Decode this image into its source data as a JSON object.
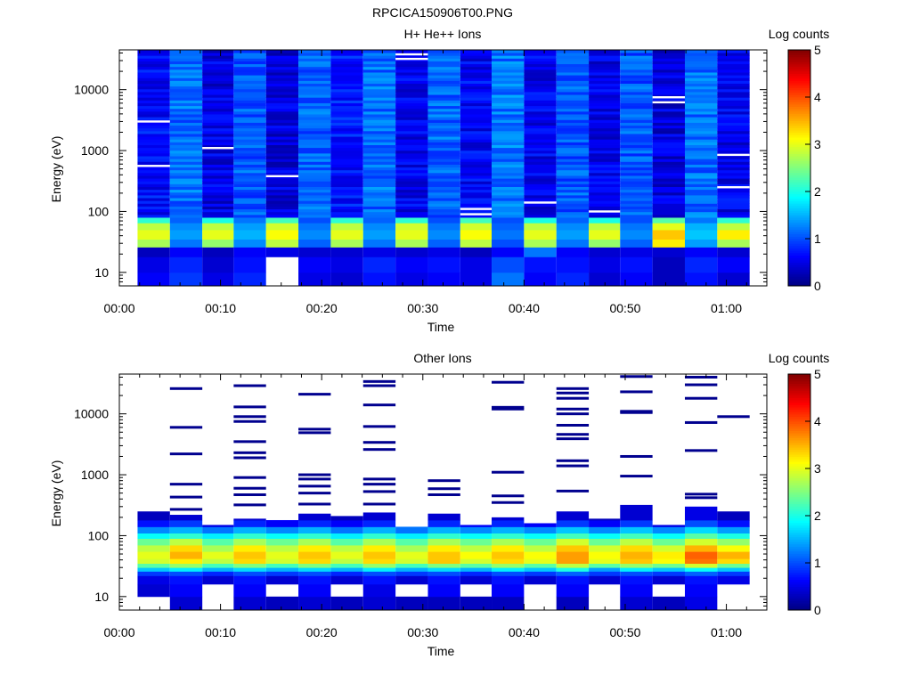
{
  "figure_title": "RPCICA150906T00.PNG",
  "chart_data": [
    {
      "type": "heatmap",
      "title": "H+ He++ Ions",
      "xlabel": "Time",
      "ylabel": "Energy (eV)",
      "x_ticks": [
        "00:00",
        "00:10",
        "00:20",
        "00:30",
        "00:40",
        "00:50",
        "01:00"
      ],
      "y_ticks": [
        "10",
        "100",
        "1000",
        "10000"
      ],
      "y_scale": "log",
      "ylim": [
        6,
        45000
      ],
      "colorbar": {
        "label": "Log counts",
        "ticks": [
          "0",
          "1",
          "2",
          "3",
          "4",
          "5"
        ],
        "range": [
          0,
          5
        ],
        "colormap": "jet"
      },
      "column_starts_min": [
        1.8,
        5.0,
        8.2,
        11.3,
        14.5,
        17.7,
        20.9,
        24.1,
        27.3,
        30.5,
        33.7,
        36.8,
        40.0,
        43.2,
        46.4,
        49.5,
        52.7,
        55.9,
        59.1,
        62.3
      ],
      "bands": [
        {
          "emin": 6,
          "emax": 10,
          "levels": [
            0.6,
            0.9,
            0.5,
            0.8,
            null,
            0.5,
            0.4,
            0.7,
            0.5,
            0.6,
            0.5,
            1.2,
            0.6,
            0.8,
            0.4,
            0.6,
            0.3,
            0.7,
            0.4
          ]
        },
        {
          "emin": 10,
          "emax": 18,
          "levels": [
            0.5,
            0.8,
            0.4,
            0.7,
            null,
            0.6,
            0.5,
            0.8,
            0.6,
            0.7,
            0.5,
            1.0,
            0.7,
            0.7,
            0.5,
            0.7,
            0.3,
            0.8,
            0.6
          ]
        },
        {
          "emin": 18,
          "emax": 26,
          "levels": [
            0.3,
            0.6,
            0.3,
            0.6,
            0.5,
            0.4,
            0.4,
            0.5,
            0.4,
            0.5,
            0.3,
            0.6,
            1.2,
            0.6,
            0.4,
            0.5,
            0.4,
            0.6,
            0.4
          ]
        },
        {
          "emin": 26,
          "emax": 35,
          "levels": [
            2.7,
            1.2,
            2.6,
            1.3,
            2.8,
            1.1,
            2.7,
            1.2,
            2.7,
            1.1,
            2.8,
            1.0,
            2.7,
            1.2,
            2.6,
            1.1,
            3.2,
            1.4,
            2.7
          ]
        },
        {
          "emin": 35,
          "emax": 50,
          "levels": [
            3.0,
            1.4,
            3.0,
            1.5,
            3.1,
            1.3,
            3.0,
            1.4,
            3.0,
            1.3,
            3.1,
            1.2,
            3.0,
            1.4,
            3.0,
            1.3,
            3.4,
            1.6,
            3.2
          ]
        },
        {
          "emin": 50,
          "emax": 65,
          "levels": [
            2.8,
            1.3,
            2.8,
            1.4,
            2.9,
            1.2,
            2.8,
            1.3,
            2.9,
            1.2,
            2.9,
            1.1,
            2.8,
            1.3,
            2.8,
            1.2,
            3.0,
            1.5,
            2.8
          ]
        },
        {
          "emin": 65,
          "emax": 80,
          "levels": [
            2.1,
            1.1,
            2.0,
            1.2,
            2.2,
            1.0,
            2.1,
            1.1,
            2.1,
            1.0,
            2.2,
            1.0,
            2.0,
            1.1,
            2.0,
            1.0,
            2.3,
            1.2,
            2.1
          ]
        },
        {
          "emin": 80,
          "emax": 45000,
          "levels": [
            0.65,
            1.15,
            0.5,
            1.05,
            0.45,
            1.1,
            0.7,
            1.15,
            0.55,
            1.1,
            0.6,
            1.2,
            0.55,
            1.05,
            0.5,
            1.05,
            0.45,
            1.15,
            0.55
          ]
        }
      ],
      "gaps": [
        {
          "col": 0,
          "e": 3000
        },
        {
          "col": 0,
          "e": 560
        },
        {
          "col": 2,
          "e": 1100
        },
        {
          "col": 4,
          "e": 380
        },
        {
          "col": 8,
          "e": 38000
        },
        {
          "col": 8,
          "e": 32000
        },
        {
          "col": 10,
          "e": 110
        },
        {
          "col": 10,
          "e": 90
        },
        {
          "col": 12,
          "e": 140
        },
        {
          "col": 14,
          "e": 100
        },
        {
          "col": 16,
          "e": 7500
        },
        {
          "col": 16,
          "e": 6200
        },
        {
          "col": 18,
          "e": 850
        },
        {
          "col": 18,
          "e": 250
        }
      ]
    },
    {
      "type": "heatmap",
      "title": "Other Ions",
      "xlabel": "Time",
      "ylabel": "Energy (eV)",
      "x_ticks": [
        "00:00",
        "00:10",
        "00:20",
        "00:30",
        "00:40",
        "00:50",
        "01:00"
      ],
      "y_ticks": [
        "10",
        "100",
        "1000",
        "10000"
      ],
      "y_scale": "log",
      "ylim": [
        6,
        45000
      ],
      "colorbar": {
        "label": "Log counts",
        "ticks": [
          "0",
          "1",
          "2",
          "3",
          "4",
          "5"
        ],
        "range": [
          0,
          5
        ],
        "colormap": "jet"
      },
      "column_starts_min": [
        1.8,
        5.0,
        8.2,
        11.3,
        14.5,
        17.7,
        20.9,
        24.1,
        27.3,
        30.5,
        33.7,
        36.8,
        40.0,
        43.2,
        46.4,
        49.5,
        52.7,
        55.9,
        59.1,
        62.3
      ],
      "column_tops_ev": [
        250,
        220,
        150,
        190,
        180,
        230,
        210,
        240,
        140,
        230,
        150,
        200,
        160,
        250,
        190,
        320,
        150,
        300,
        250
      ],
      "bands": [
        {
          "emin": 6,
          "emax": 10,
          "levels": [
            null,
            0.4,
            null,
            0.4,
            0.3,
            0.4,
            0.3,
            0.4,
            0.3,
            0.3,
            0.3,
            0.3,
            null,
            0.3,
            null,
            0.4,
            0.3,
            0.5,
            null
          ]
        },
        {
          "emin": 10,
          "emax": 16,
          "levels": [
            0.4,
            0.6,
            null,
            0.6,
            null,
            0.6,
            null,
            0.5,
            null,
            0.6,
            null,
            0.6,
            null,
            0.6,
            null,
            0.6,
            null,
            0.6,
            null
          ]
        },
        {
          "emin": 16,
          "emax": 22,
          "levels": [
            0.5,
            0.7,
            0.4,
            0.7,
            0.4,
            0.7,
            0.4,
            0.7,
            0.4,
            0.7,
            0.4,
            0.7,
            0.4,
            0.7,
            0.4,
            0.7,
            0.4,
            0.7,
            0.5
          ]
        },
        {
          "emin": 22,
          "emax": 26,
          "levels": [
            0.9,
            1.0,
            0.8,
            1.0,
            0.9,
            1.0,
            0.8,
            1.0,
            0.9,
            1.0,
            0.8,
            1.0,
            0.9,
            1.1,
            0.9,
            1.0,
            0.9,
            1.1,
            0.9
          ]
        },
        {
          "emin": 26,
          "emax": 30,
          "levels": [
            1.6,
            1.8,
            1.5,
            1.7,
            1.5,
            1.7,
            1.5,
            1.8,
            1.5,
            1.7,
            1.5,
            1.8,
            1.6,
            2.0,
            1.4,
            1.8,
            1.6,
            1.9,
            1.6
          ]
        },
        {
          "emin": 30,
          "emax": 35,
          "levels": [
            2.3,
            2.6,
            2.2,
            2.5,
            2.2,
            2.5,
            2.2,
            2.6,
            2.2,
            2.5,
            2.3,
            2.6,
            2.3,
            2.8,
            2.3,
            2.6,
            2.4,
            2.9,
            2.4
          ]
        },
        {
          "emin": 35,
          "emax": 42,
          "levels": [
            2.9,
            3.2,
            2.8,
            3.3,
            2.9,
            3.3,
            2.8,
            3.3,
            2.9,
            3.4,
            2.9,
            3.3,
            3.0,
            3.6,
            3.0,
            3.4,
            3.1,
            3.8,
            3.3
          ]
        },
        {
          "emin": 42,
          "emax": 55,
          "levels": [
            3.0,
            3.5,
            3.0,
            3.4,
            3.0,
            3.4,
            3.0,
            3.4,
            3.0,
            3.4,
            3.1,
            3.4,
            3.1,
            3.6,
            3.1,
            3.5,
            3.2,
            3.9,
            3.5
          ]
        },
        {
          "emin": 55,
          "emax": 70,
          "levels": [
            2.8,
            3.3,
            2.7,
            3.2,
            2.8,
            3.2,
            2.8,
            3.2,
            2.7,
            3.2,
            2.8,
            3.2,
            2.8,
            3.4,
            2.9,
            3.3,
            2.9,
            3.5,
            3.1
          ]
        },
        {
          "emin": 70,
          "emax": 90,
          "levels": [
            2.4,
            2.8,
            2.3,
            2.7,
            2.4,
            2.7,
            2.3,
            2.7,
            2.3,
            2.7,
            2.4,
            2.7,
            2.4,
            2.9,
            2.4,
            2.8,
            2.4,
            2.9,
            2.6
          ]
        },
        {
          "emin": 90,
          "emax": 110,
          "levels": [
            1.9,
            2.1,
            1.8,
            2.1,
            1.9,
            2.1,
            1.8,
            2.1,
            1.8,
            2.1,
            1.9,
            2.1,
            1.9,
            2.2,
            1.9,
            2.2,
            1.9,
            2.3,
            2.0
          ]
        },
        {
          "emin": 110,
          "emax": 140,
          "levels": [
            1.3,
            1.5,
            1.2,
            1.5,
            1.3,
            1.5,
            1.2,
            1.5,
            1.2,
            1.5,
            1.3,
            1.5,
            1.3,
            1.6,
            1.3,
            1.6,
            1.3,
            1.7,
            1.4
          ]
        },
        {
          "emin": 140,
          "emax": 180,
          "levels": [
            0.7,
            0.9,
            0.5,
            0.8,
            0.6,
            0.8,
            0.6,
            0.8,
            0.5,
            0.8,
            0.6,
            0.8,
            0.6,
            0.9,
            0.6,
            0.9,
            0.5,
            1.0,
            0.7
          ]
        },
        {
          "emin": 180,
          "emax": 330,
          "levels": [
            0.3,
            0.4,
            0.3,
            0.4,
            0.3,
            0.4,
            0.3,
            0.4,
            0.3,
            0.4,
            0.3,
            0.4,
            0.3,
            0.4,
            0.3,
            0.4,
            0.3,
            0.5,
            0.3
          ]
        }
      ],
      "sparse_lines": [
        {
          "col": 1,
          "e": [
            26000,
            6000,
            2200,
            700,
            430,
            270
          ]
        },
        {
          "col": 3,
          "e": [
            29000,
            13000,
            9000,
            7500,
            3500,
            2300,
            1900,
            900,
            600,
            470,
            320
          ]
        },
        {
          "col": 5,
          "e": [
            21000,
            5600,
            4900,
            1000,
            850,
            650,
            500,
            330
          ]
        },
        {
          "col": 7,
          "e": [
            34000,
            29000,
            14000,
            6200,
            3400,
            2600,
            850,
            700,
            530,
            330
          ]
        },
        {
          "col": 9,
          "e": [
            800,
            590,
            470
          ]
        },
        {
          "col": 11,
          "e": [
            33000,
            12800,
            12000,
            1100,
            450,
            350
          ]
        },
        {
          "col": 13,
          "e": [
            26000,
            22000,
            18000,
            12000,
            10000,
            6500,
            4600,
            3900,
            1700,
            1400,
            540
          ]
        },
        {
          "col": 15,
          "e": [
            41000,
            23000,
            11000,
            10500,
            2000,
            950
          ]
        },
        {
          "col": 17,
          "e": [
            40000,
            30000,
            18000,
            7200,
            2500,
            480,
            420
          ]
        },
        {
          "col": 18,
          "e": [
            9000
          ]
        }
      ]
    }
  ]
}
